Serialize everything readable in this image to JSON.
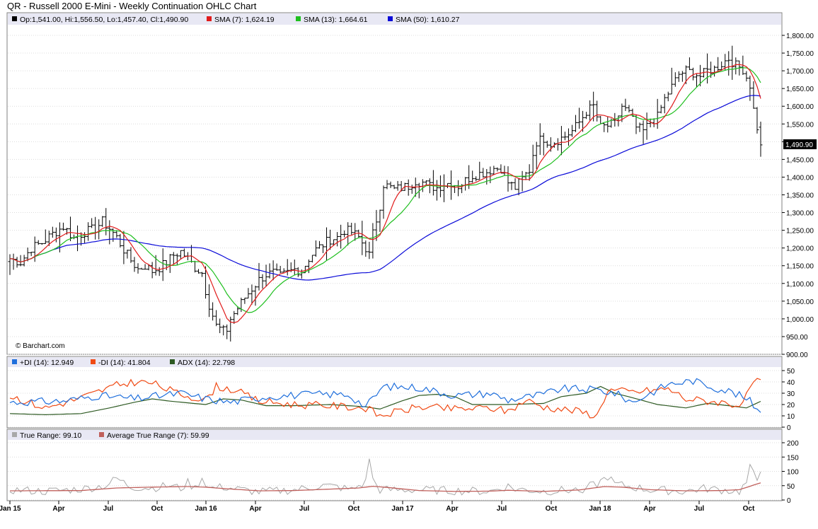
{
  "title": "QR - Russell 2000 E-Mini - Weekly Continuation OHLC Chart",
  "colors": {
    "price": "#000000",
    "sma7": "#e01b1b",
    "sma13": "#1fbf1f",
    "sma50": "#0a0ad8",
    "pdi": "#1f6fdc",
    "mdi": "#f04a14",
    "adx": "#2e5a23",
    "tr": "#a8a8a8",
    "atr": "#c0605c",
    "legend_bg": "#e8e8f4"
  },
  "legend": {
    "ohlc": "Op:1,541.00, Hi:1,556.50, Lo:1,457.40, Cl:1,490.90",
    "sma7": "SMA (7): 1,624.19",
    "sma13": "SMA (13): 1,664.61",
    "sma50": "SMA (50): 1,610.27",
    "pdi": "+DI (14): 12.949",
    "mdi": "-DI (14): 41.804",
    "adx": "ADX (14): 22.798",
    "tr": "True Range: 99.10",
    "atr": "Average True Range (7): 59.99"
  },
  "watermark": "© Barchart.com",
  "last_price_label": "1,490.90",
  "chart_data": [
    {
      "type": "ohlc",
      "ylim": [
        900,
        1800
      ],
      "yticks": [
        "900.00",
        "950.00",
        "1,000.00",
        "1,050.00",
        "1,100.00",
        "1,150.00",
        "1,200.00",
        "1,250.00",
        "1,300.00",
        "1,350.00",
        "1,400.00",
        "1,450.00",
        "1,500.00",
        "1,550.00",
        "1,600.00",
        "1,650.00",
        "1,700.00",
        "1,750.00",
        "1,800.00"
      ],
      "xticks": [
        "Jan 15",
        "Apr",
        "Jul",
        "Oct",
        "Jan 16",
        "Apr",
        "Jul",
        "Oct",
        "Jan 17",
        "Apr",
        "Jul",
        "Oct",
        "Jan 18",
        "Apr",
        "Jul",
        "Oct"
      ],
      "anchors": [
        [
          0,
          1170
        ],
        [
          3,
          1160
        ],
        [
          6,
          1200
        ],
        [
          9,
          1215
        ],
        [
          12,
          1240
        ],
        [
          15,
          1260
        ],
        [
          18,
          1228
        ],
        [
          21,
          1245
        ],
        [
          24,
          1255
        ],
        [
          26,
          1275
        ],
        [
          28,
          1255
        ],
        [
          30,
          1230
        ],
        [
          32,
          1195
        ],
        [
          34,
          1165
        ],
        [
          36,
          1140
        ],
        [
          38,
          1150
        ],
        [
          40,
          1135
        ],
        [
          42,
          1145
        ],
        [
          44,
          1160
        ],
        [
          46,
          1180
        ],
        [
          48,
          1190
        ],
        [
          50,
          1170
        ],
        [
          52,
          1145
        ],
        [
          54,
          1130
        ],
        [
          55,
          1080
        ],
        [
          56,
          1040
        ],
        [
          57,
          1010
        ],
        [
          58,
          980
        ],
        [
          60,
          965
        ],
        [
          61,
          970
        ],
        [
          62,
          1000
        ],
        [
          64,
          1030
        ],
        [
          66,
          1060
        ],
        [
          68,
          1085
        ],
        [
          70,
          1110
        ],
        [
          72,
          1125
        ],
        [
          74,
          1130
        ],
        [
          76,
          1120
        ],
        [
          78,
          1130
        ],
        [
          80,
          1140
        ],
        [
          82,
          1135
        ],
        [
          84,
          1170
        ],
        [
          86,
          1195
        ],
        [
          88,
          1210
        ],
        [
          90,
          1225
        ],
        [
          92,
          1230
        ],
        [
          94,
          1250
        ],
        [
          96,
          1245
        ],
        [
          98,
          1230
        ],
        [
          100,
          1200
        ],
        [
          101,
          1180
        ],
        [
          102,
          1240
        ],
        [
          103,
          1280
        ],
        [
          104,
          1320
        ],
        [
          105,
          1380
        ],
        [
          106,
          1375
        ],
        [
          108,
          1365
        ],
        [
          110,
          1370
        ],
        [
          112,
          1375
        ],
        [
          114,
          1390
        ],
        [
          116,
          1385
        ],
        [
          118,
          1375
        ],
        [
          120,
          1370
        ],
        [
          122,
          1380
        ],
        [
          124,
          1385
        ],
        [
          126,
          1375
        ],
        [
          128,
          1390
        ],
        [
          130,
          1405
        ],
        [
          132,
          1410
        ],
        [
          134,
          1415
        ],
        [
          136,
          1425
        ],
        [
          138,
          1425
        ],
        [
          140,
          1385
        ],
        [
          142,
          1370
        ],
        [
          144,
          1395
        ],
        [
          146,
          1420
        ],
        [
          147,
          1465
        ],
        [
          148,
          1500
        ],
        [
          150,
          1510
        ],
        [
          152,
          1495
        ],
        [
          154,
          1505
        ],
        [
          156,
          1515
        ],
        [
          158,
          1530
        ],
        [
          160,
          1555
        ],
        [
          162,
          1585
        ],
        [
          164,
          1600
        ],
        [
          166,
          1540
        ],
        [
          168,
          1545
        ],
        [
          170,
          1550
        ],
        [
          172,
          1600
        ],
        [
          174,
          1580
        ],
        [
          176,
          1540
        ],
        [
          178,
          1530
        ],
        [
          180,
          1555
        ],
        [
          182,
          1570
        ],
        [
          184,
          1620
        ],
        [
          186,
          1655
        ],
        [
          188,
          1690
        ],
        [
          190,
          1700
        ],
        [
          192,
          1695
        ],
        [
          194,
          1685
        ],
        [
          196,
          1700
        ],
        [
          198,
          1705
        ],
        [
          200,
          1720
        ],
        [
          202,
          1735
        ],
        [
          204,
          1715
        ],
        [
          206,
          1705
        ],
        [
          208,
          1660
        ],
        [
          209,
          1590
        ],
        [
          210,
          1541
        ],
        [
          211,
          1490.9
        ]
      ],
      "last_bar": {
        "open": 1541.0,
        "high": 1556.5,
        "low": 1457.4,
        "close": 1490.9
      },
      "series": [
        {
          "name": "SMA (7)",
          "last": 1624.19
        },
        {
          "name": "SMA (13)",
          "last": 1664.61
        },
        {
          "name": "SMA (50)",
          "last": 1610.27
        }
      ]
    },
    {
      "type": "line",
      "ylim": [
        0,
        50
      ],
      "yticks": [
        "0",
        "10",
        "20",
        "30",
        "40",
        "50"
      ],
      "pdi_anchors": [
        [
          0,
          22
        ],
        [
          15,
          23
        ],
        [
          25,
          28
        ],
        [
          35,
          25
        ],
        [
          48,
          30
        ],
        [
          55,
          25
        ],
        [
          62,
          22
        ],
        [
          72,
          27
        ],
        [
          85,
          29
        ],
        [
          95,
          29
        ],
        [
          100,
          18
        ],
        [
          105,
          36
        ],
        [
          115,
          35
        ],
        [
          125,
          28
        ],
        [
          135,
          30
        ],
        [
          140,
          24
        ],
        [
          150,
          29
        ],
        [
          155,
          34
        ],
        [
          165,
          33
        ],
        [
          170,
          30
        ],
        [
          175,
          22
        ],
        [
          185,
          38
        ],
        [
          192,
          41
        ],
        [
          198,
          35
        ],
        [
          202,
          32
        ],
        [
          205,
          28
        ],
        [
          208,
          23
        ],
        [
          211,
          13
        ]
      ],
      "mdi_anchors": [
        [
          0,
          28
        ],
        [
          10,
          17
        ],
        [
          20,
          26
        ],
        [
          30,
          37
        ],
        [
          35,
          40
        ],
        [
          40,
          39
        ],
        [
          47,
          30
        ],
        [
          55,
          24
        ],
        [
          58,
          36
        ],
        [
          63,
          33
        ],
        [
          70,
          23
        ],
        [
          80,
          20
        ],
        [
          90,
          19
        ],
        [
          100,
          17
        ],
        [
          104,
          10
        ],
        [
          115,
          18
        ],
        [
          125,
          16
        ],
        [
          135,
          17
        ],
        [
          140,
          14
        ],
        [
          145,
          24
        ],
        [
          150,
          18
        ],
        [
          160,
          14
        ],
        [
          165,
          10
        ],
        [
          168,
          33
        ],
        [
          175,
          31
        ],
        [
          185,
          34
        ],
        [
          190,
          25
        ],
        [
          200,
          22
        ],
        [
          206,
          19
        ],
        [
          208,
          36
        ],
        [
          211,
          42
        ]
      ],
      "adx_anchors": [
        [
          0,
          12
        ],
        [
          10,
          11
        ],
        [
          20,
          12
        ],
        [
          28,
          17
        ],
        [
          35,
          22
        ],
        [
          40,
          25
        ],
        [
          45,
          23
        ],
        [
          55,
          20
        ],
        [
          60,
          25
        ],
        [
          65,
          24
        ],
        [
          72,
          19
        ],
        [
          80,
          19
        ],
        [
          90,
          20
        ],
        [
          100,
          18
        ],
        [
          104,
          16
        ],
        [
          110,
          23
        ],
        [
          115,
          28
        ],
        [
          120,
          29
        ],
        [
          125,
          27
        ],
        [
          130,
          20
        ],
        [
          140,
          20
        ],
        [
          150,
          21
        ],
        [
          155,
          27
        ],
        [
          162,
          30
        ],
        [
          166,
          36
        ],
        [
          170,
          30
        ],
        [
          175,
          26
        ],
        [
          182,
          20
        ],
        [
          190,
          17
        ],
        [
          196,
          21
        ],
        [
          202,
          19
        ],
        [
          207,
          17
        ],
        [
          211,
          22.8
        ]
      ],
      "series": [
        {
          "name": "+DI (14)",
          "last": 12.949
        },
        {
          "name": "-DI (14)",
          "last": 41.804
        },
        {
          "name": "ADX (14)",
          "last": 22.798
        }
      ]
    },
    {
      "type": "line",
      "ylim": [
        0,
        200
      ],
      "yticks": [
        "0",
        "50",
        "100",
        "150",
        "200"
      ],
      "tr_anchors": [
        [
          0,
          35
        ],
        [
          10,
          30
        ],
        [
          20,
          38
        ],
        [
          27,
          50
        ],
        [
          30,
          75
        ],
        [
          32,
          60
        ],
        [
          34,
          45
        ],
        [
          40,
          42
        ],
        [
          45,
          50
        ],
        [
          48,
          40
        ],
        [
          50,
          60
        ],
        [
          52,
          40
        ],
        [
          54,
          78
        ],
        [
          56,
          40
        ],
        [
          60,
          45
        ],
        [
          65,
          35
        ],
        [
          70,
          28
        ],
        [
          80,
          35
        ],
        [
          88,
          50
        ],
        [
          92,
          45
        ],
        [
          96,
          35
        ],
        [
          100,
          62
        ],
        [
          101,
          150
        ],
        [
          102,
          70
        ],
        [
          104,
          35
        ],
        [
          115,
          35
        ],
        [
          125,
          32
        ],
        [
          135,
          30
        ],
        [
          140,
          48
        ],
        [
          142,
          38
        ],
        [
          150,
          30
        ],
        [
          160,
          36
        ],
        [
          165,
          55
        ],
        [
          168,
          82
        ],
        [
          170,
          55
        ],
        [
          175,
          45
        ],
        [
          180,
          35
        ],
        [
          190,
          30
        ],
        [
          195,
          40
        ],
        [
          200,
          35
        ],
        [
          205,
          30
        ],
        [
          207,
          60
        ],
        [
          208,
          110
        ],
        [
          209,
          90
        ],
        [
          210,
          70
        ],
        [
          211,
          99.1
        ]
      ],
      "atr_anchors": [
        [
          0,
          32
        ],
        [
          20,
          33
        ],
        [
          30,
          42
        ],
        [
          40,
          45
        ],
        [
          50,
          47
        ],
        [
          55,
          45
        ],
        [
          60,
          40
        ],
        [
          70,
          32
        ],
        [
          80,
          33
        ],
        [
          90,
          38
        ],
        [
          98,
          42
        ],
        [
          102,
          48
        ],
        [
          106,
          44
        ],
        [
          115,
          33
        ],
        [
          125,
          30
        ],
        [
          135,
          31
        ],
        [
          140,
          34
        ],
        [
          150,
          30
        ],
        [
          160,
          35
        ],
        [
          167,
          47
        ],
        [
          172,
          45
        ],
        [
          180,
          36
        ],
        [
          190,
          32
        ],
        [
          200,
          33
        ],
        [
          205,
          36
        ],
        [
          208,
          48
        ],
        [
          211,
          59.99
        ]
      ],
      "series": [
        {
          "name": "True Range",
          "last": 99.1
        },
        {
          "name": "Average True Range (7)",
          "last": 59.99
        }
      ]
    }
  ]
}
